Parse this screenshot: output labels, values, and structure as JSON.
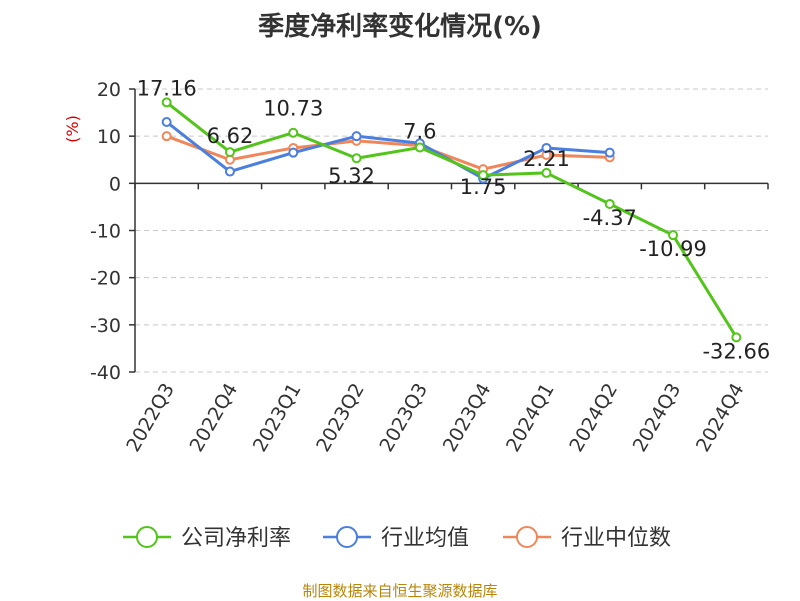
{
  "chart_data": {
    "type": "line",
    "title": "季度净利率变化情况(%)",
    "ylabel": "(%)",
    "xlabel": "",
    "ylim": [
      -40,
      20
    ],
    "yticks": [
      20,
      10,
      0,
      -10,
      -20,
      -30,
      -40
    ],
    "grid": true,
    "legend_position": "bottom",
    "categories": [
      "2022Q3",
      "2022Q4",
      "2023Q1",
      "2023Q2",
      "2023Q3",
      "2023Q4",
      "2024Q1",
      "2024Q2",
      "2024Q3",
      "2024Q4"
    ],
    "series": [
      {
        "name": "公司净利率",
        "color": "#52c41a",
        "values": [
          17.16,
          6.62,
          10.73,
          5.32,
          7.6,
          1.75,
          2.21,
          -4.37,
          -10.99,
          -32.66
        ],
        "data_labels": [
          "17.16",
          "6.62",
          "10.73",
          "5.32",
          "7.6",
          "1.75",
          "2.21",
          "-4.37",
          "-10.99",
          "-32.66"
        ]
      },
      {
        "name": "行业均值",
        "color": "#4a7fe0",
        "values": [
          13.0,
          2.5,
          6.5,
          10.0,
          8.5,
          1.0,
          7.5,
          6.5,
          null,
          null
        ]
      },
      {
        "name": "行业中位数",
        "color": "#f0875a",
        "values": [
          10.0,
          5.0,
          7.5,
          9.0,
          8.0,
          3.0,
          6.0,
          5.5,
          null,
          null
        ]
      }
    ]
  },
  "source_note": "制图数据来自恒生聚源数据库"
}
